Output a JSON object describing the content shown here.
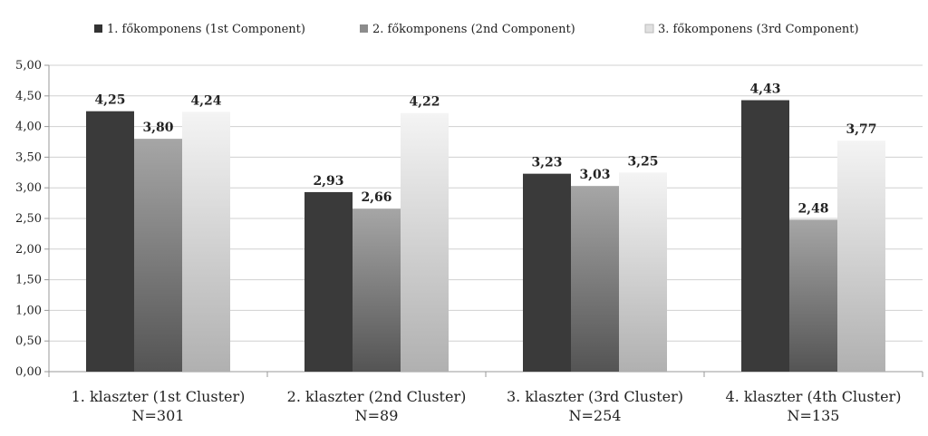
{
  "chart_data": {
    "type": "bar",
    "categories": [
      [
        "1. klaszter (1st Cluster)",
        "N=301"
      ],
      [
        "2. klaszter (2nd Cluster)",
        "N=89"
      ],
      [
        "3. klaszter (3rd Cluster)",
        "N=254"
      ],
      [
        "4. klaszter (4th Cluster)",
        "N=135"
      ]
    ],
    "series": [
      {
        "name": "1. főkomponens (1st Component)",
        "values": [
          4.25,
          2.93,
          3.23,
          4.43
        ],
        "labels": [
          "4,25",
          "2,93",
          "3,23",
          "4,43"
        ]
      },
      {
        "name": "2. főkomponens (2nd Component)",
        "values": [
          3.8,
          2.66,
          3.03,
          2.48
        ],
        "labels": [
          "3,80",
          "2,66",
          "3,03",
          "2,48"
        ]
      },
      {
        "name": "3. főkomponens (3rd Component)",
        "values": [
          4.24,
          4.22,
          3.25,
          3.77
        ],
        "labels": [
          "4,24",
          "4,22",
          "3,25",
          "3,77"
        ]
      }
    ],
    "ylim": [
      0,
      5
    ],
    "yticks": [
      "0,00",
      "0,50",
      "1,00",
      "1,50",
      "2,00",
      "2,50",
      "3,00",
      "3,50",
      "4,00",
      "4,50",
      "5,00"
    ],
    "grid": true,
    "legend_position": "top",
    "title": "",
    "xlabel": "",
    "ylabel": ""
  }
}
